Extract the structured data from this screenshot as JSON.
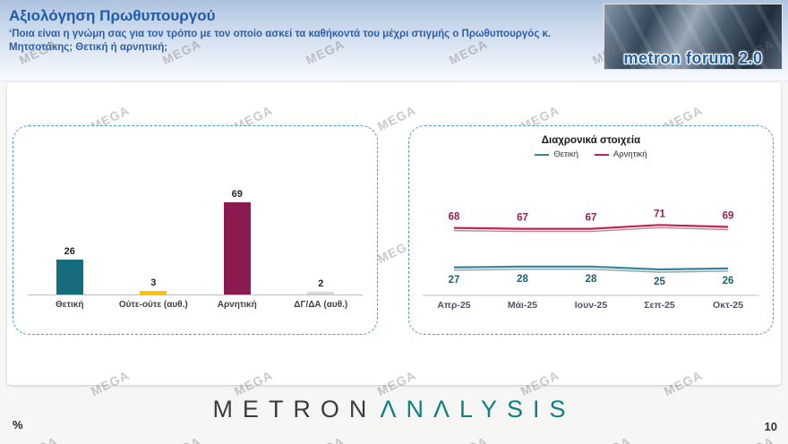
{
  "header": {
    "title": "Αξιολόγηση Πρωθυπουργού",
    "subtitle": "‘Ποια είναι η γνώμη σας για τον τρόπο με τον οποίο ασκεί τα καθήκοντά του μέχρι στιγμής ο Πρωθυπουργός κ. Μητσοτάκης; Θετική ή αρνητική;",
    "logo_text": "metron forum 2.0"
  },
  "watermark": {
    "text": "MEGA"
  },
  "chart_data": [
    {
      "type": "bar",
      "title": "",
      "categories": [
        "Θετική",
        "Ούτε-ούτε (αυθ.)",
        "Αρνητική",
        "ΔΓ/ΔΑ (αυθ.)"
      ],
      "values": [
        26,
        3,
        69,
        2
      ],
      "colors": [
        "#186a7d",
        "#ffc000",
        "#8a1a4f",
        "#d9d9d9"
      ],
      "ylim": [
        0,
        100
      ],
      "xlabel": "",
      "ylabel": ""
    },
    {
      "type": "line",
      "title": "Διαχρονικά στοιχεία",
      "categories": [
        "Απρ-25",
        "Μάι-25",
        "Ιουν-25",
        "Σεπ-25",
        "Οκτ-25"
      ],
      "series": [
        {
          "name": "Θετική",
          "values": [
            27,
            28,
            28,
            25,
            26
          ],
          "color": "#31859c",
          "label_color": "#1f5f74",
          "shadow": "#11505e"
        },
        {
          "name": "Αρνητική",
          "values": [
            68,
            67,
            67,
            71,
            69
          ],
          "color": "#c0254e",
          "label_color": "#9c1f47",
          "shadow": "#7f1437"
        }
      ],
      "ylim": [
        0,
        100
      ],
      "legend_position": "top",
      "axis_label_color": "#4a5568"
    }
  ],
  "footer": {
    "percent_label": "%",
    "page_number": "10",
    "brand_left": "METRON",
    "brand_right": "ΛNΛLYSIS"
  }
}
